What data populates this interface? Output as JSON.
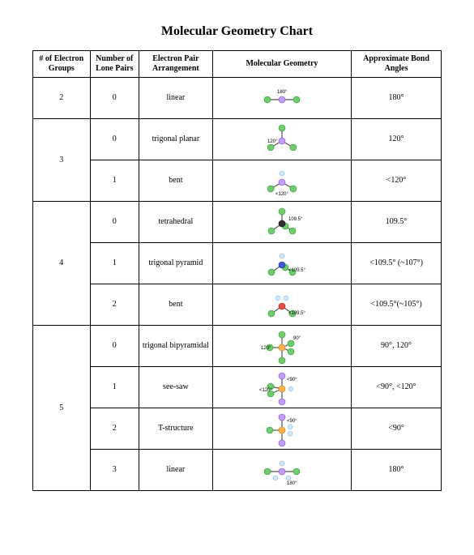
{
  "title": "Molecular Geometry Chart",
  "columns": [
    "# of Electron Groups",
    "Number of Lone Pairs",
    "Electron Pair Arrangement",
    "Molecular Geometry",
    "Approximate Bond Angles"
  ],
  "groups": [
    {
      "electronGroups": "2",
      "rows": [
        {
          "lonePairs": "0",
          "arrangement": "linear",
          "angleLabel": "180°",
          "bondAngle": "180°",
          "diagram": "linear2"
        }
      ]
    },
    {
      "electronGroups": "3",
      "rows": [
        {
          "lonePairs": "0",
          "arrangement": "trigonal planar",
          "angleLabel": "120°",
          "bondAngle": "120°",
          "diagram": "trigPlanar"
        },
        {
          "lonePairs": "1",
          "arrangement": "bent",
          "angleLabel": "<120°",
          "bondAngle": "<120°",
          "diagram": "bent3"
        }
      ]
    },
    {
      "electronGroups": "4",
      "rows": [
        {
          "lonePairs": "0",
          "arrangement": "tetrahedral",
          "angleLabel": "109.5°",
          "bondAngle": "109.5°",
          "diagram": "tetra"
        },
        {
          "lonePairs": "1",
          "arrangement": "trigonal pyramid",
          "angleLabel": "<109.5°",
          "bondAngle": "<109.5° (~107°)",
          "diagram": "trigPyr"
        },
        {
          "lonePairs": "2",
          "arrangement": "bent",
          "angleLabel": "<109.5°",
          "bondAngle": "<109.5°(~105°)",
          "diagram": "bent4"
        }
      ]
    },
    {
      "electronGroups": "5",
      "rows": [
        {
          "lonePairs": "0",
          "arrangement": "trigonal bipyramidal",
          "angleLabel": "90°",
          "angleLabel2": "120°",
          "bondAngle": "90°, 120°",
          "diagram": "trigBipyr"
        },
        {
          "lonePairs": "1",
          "arrangement": "see-saw",
          "angleLabel": "<90°",
          "angleLabel2": "<120°",
          "bondAngle": "<90°, <120°",
          "diagram": "seesaw"
        },
        {
          "lonePairs": "2",
          "arrangement": "T-structure",
          "angleLabel": "<90°",
          "bondAngle": "<90°",
          "diagram": "tstruct"
        },
        {
          "lonePairs": "3",
          "arrangement": "linear",
          "angleLabel": "180°",
          "bondAngle": "180°",
          "diagram": "linear5"
        }
      ]
    }
  ],
  "colors": {
    "green": "#6bcf6b",
    "violet": "#c89bff",
    "black": "#333333",
    "blue": "#3b5bd9",
    "orange": "#ffb347",
    "red": "#e74c3c",
    "lone": "#cfe8ff",
    "border": "#000000",
    "bg": "#ffffff"
  },
  "atomRadius": 4,
  "loneRadius": 3,
  "svgSize": {
    "w": 90,
    "h": 46
  }
}
